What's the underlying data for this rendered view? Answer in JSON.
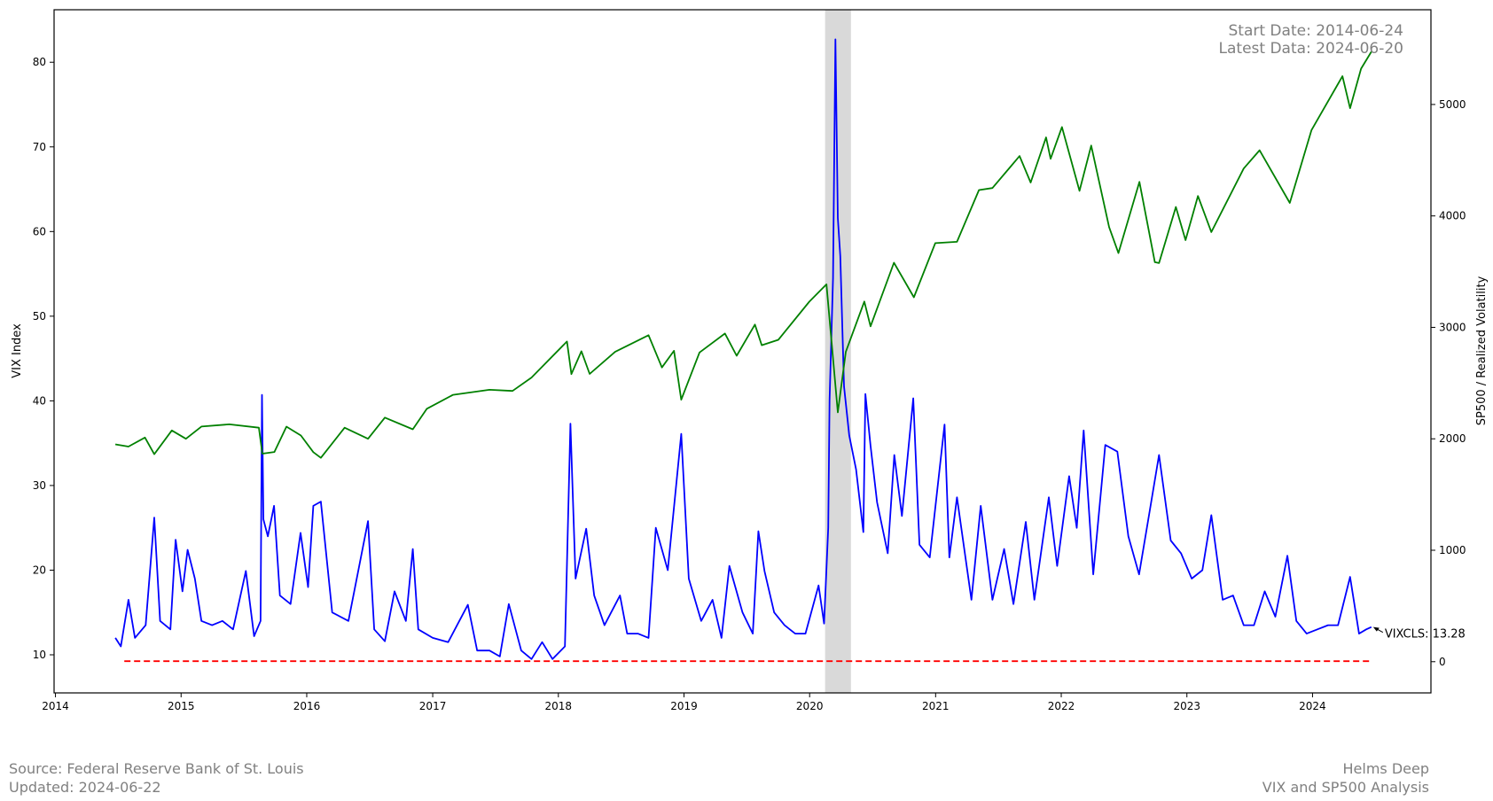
{
  "chart_data": {
    "type": "line",
    "annotation": {
      "start_date": "Start Date: 2014-06-24",
      "latest_data": "Latest Data: 2024-06-20",
      "last_value_label": "VIXCLS: 13.28"
    },
    "left_axis": {
      "label": "VIX Index",
      "ylim": [
        5.5,
        86.2
      ],
      "ticks": [
        10,
        20,
        30,
        40,
        50,
        60,
        70,
        80
      ]
    },
    "right_axis": {
      "label": "SP500 / Realized Volatility",
      "ylim": [
        -280,
        5850
      ],
      "ticks": [
        0,
        1000,
        2000,
        3000,
        4000,
        5000
      ]
    },
    "x_axis": {
      "range": [
        "2013-12-28",
        "2024-12-10"
      ],
      "ticks": [
        "2014",
        "2015",
        "2016",
        "2017",
        "2018",
        "2019",
        "2020",
        "2021",
        "2022",
        "2023",
        "2024"
      ]
    },
    "recession_band": {
      "start": "2020-02-15",
      "end": "2020-04-30",
      "color": "#d9d9d9"
    },
    "series": [
      {
        "axis": "left",
        "color": "#0000ff",
        "points": [
          [
            "2014-06-24",
            12.0
          ],
          [
            "2014-07-10",
            11.0
          ],
          [
            "2014-08-01",
            16.5
          ],
          [
            "2014-08-20",
            12.0
          ],
          [
            "2014-09-20",
            13.5
          ],
          [
            "2014-10-15",
            26.2
          ],
          [
            "2014-11-01",
            14.0
          ],
          [
            "2014-12-01",
            13.0
          ],
          [
            "2014-12-16",
            23.6
          ],
          [
            "2015-01-05",
            17.5
          ],
          [
            "2015-01-20",
            22.4
          ],
          [
            "2015-02-10",
            19.0
          ],
          [
            "2015-03-01",
            14.0
          ],
          [
            "2015-04-01",
            13.5
          ],
          [
            "2015-05-01",
            14.0
          ],
          [
            "2015-06-01",
            13.0
          ],
          [
            "2015-07-08",
            19.9
          ],
          [
            "2015-08-01",
            12.2
          ],
          [
            "2015-08-20",
            14.0
          ],
          [
            "2015-08-24",
            40.7
          ],
          [
            "2015-08-28",
            26.0
          ],
          [
            "2015-09-10",
            24.0
          ],
          [
            "2015-09-28",
            27.6
          ],
          [
            "2015-10-15",
            17.0
          ],
          [
            "2015-11-15",
            16.0
          ],
          [
            "2015-12-14",
            24.4
          ],
          [
            "2016-01-05",
            18.0
          ],
          [
            "2016-01-20",
            27.6
          ],
          [
            "2016-02-11",
            28.1
          ],
          [
            "2016-03-15",
            15.0
          ],
          [
            "2016-05-01",
            14.0
          ],
          [
            "2016-06-27",
            25.8
          ],
          [
            "2016-07-15",
            13.0
          ],
          [
            "2016-08-15",
            11.6
          ],
          [
            "2016-09-12",
            17.5
          ],
          [
            "2016-10-15",
            14.0
          ],
          [
            "2016-11-04",
            22.5
          ],
          [
            "2016-11-20",
            13.0
          ],
          [
            "2017-01-01",
            12.0
          ],
          [
            "2017-02-15",
            11.5
          ],
          [
            "2017-04-13",
            15.9
          ],
          [
            "2017-05-10",
            10.5
          ],
          [
            "2017-06-15",
            10.5
          ],
          [
            "2017-07-15",
            9.8
          ],
          [
            "2017-08-10",
            16.0
          ],
          [
            "2017-09-15",
            10.5
          ],
          [
            "2017-10-15",
            9.5
          ],
          [
            "2017-11-15",
            11.5
          ],
          [
            "2017-12-15",
            9.5
          ],
          [
            "2018-01-20",
            11.0
          ],
          [
            "2018-02-05",
            37.3
          ],
          [
            "2018-02-20",
            19.0
          ],
          [
            "2018-03-23",
            24.9
          ],
          [
            "2018-04-15",
            17.0
          ],
          [
            "2018-05-15",
            13.5
          ],
          [
            "2018-06-29",
            17.0
          ],
          [
            "2018-07-20",
            12.5
          ],
          [
            "2018-08-20",
            12.5
          ],
          [
            "2018-09-20",
            12.0
          ],
          [
            "2018-10-11",
            25.0
          ],
          [
            "2018-11-15",
            20.0
          ],
          [
            "2018-12-24",
            36.1
          ],
          [
            "2019-01-15",
            19.0
          ],
          [
            "2019-02-20",
            14.0
          ],
          [
            "2019-03-25",
            16.5
          ],
          [
            "2019-04-20",
            12.0
          ],
          [
            "2019-05-13",
            20.5
          ],
          [
            "2019-06-20",
            15.0
          ],
          [
            "2019-07-20",
            12.5
          ],
          [
            "2019-08-05",
            24.6
          ],
          [
            "2019-08-23",
            19.9
          ],
          [
            "2019-09-20",
            15.0
          ],
          [
            "2019-10-20",
            13.5
          ],
          [
            "2019-11-20",
            12.5
          ],
          [
            "2019-12-20",
            12.5
          ],
          [
            "2020-01-27",
            18.2
          ],
          [
            "2020-02-12",
            13.7
          ],
          [
            "2020-02-24",
            25.0
          ],
          [
            "2020-02-28",
            40.1
          ],
          [
            "2020-03-09",
            54.5
          ],
          [
            "2020-03-16",
            82.7
          ],
          [
            "2020-03-23",
            61.6
          ],
          [
            "2020-03-30",
            57.1
          ],
          [
            "2020-04-10",
            41.7
          ],
          [
            "2020-04-25",
            35.9
          ],
          [
            "2020-05-15",
            31.9
          ],
          [
            "2020-06-05",
            24.5
          ],
          [
            "2020-06-11",
            40.8
          ],
          [
            "2020-06-26",
            34.7
          ],
          [
            "2020-07-15",
            28.0
          ],
          [
            "2020-08-15",
            22.0
          ],
          [
            "2020-09-03",
            33.6
          ],
          [
            "2020-09-25",
            26.4
          ],
          [
            "2020-10-28",
            40.3
          ],
          [
            "2020-11-15",
            23.0
          ],
          [
            "2020-12-15",
            21.5
          ],
          [
            "2021-01-27",
            37.2
          ],
          [
            "2021-02-10",
            21.5
          ],
          [
            "2021-03-04",
            28.6
          ],
          [
            "2021-04-15",
            16.5
          ],
          [
            "2021-05-12",
            27.6
          ],
          [
            "2021-06-15",
            16.5
          ],
          [
            "2021-07-19",
            22.5
          ],
          [
            "2021-08-15",
            16.0
          ],
          [
            "2021-09-20",
            25.7
          ],
          [
            "2021-10-15",
            16.5
          ],
          [
            "2021-11-26",
            28.6
          ],
          [
            "2021-12-20",
            20.5
          ],
          [
            "2022-01-24",
            31.1
          ],
          [
            "2022-02-15",
            25.0
          ],
          [
            "2022-03-07",
            36.5
          ],
          [
            "2022-04-04",
            19.5
          ],
          [
            "2022-05-09",
            34.8
          ],
          [
            "2022-06-13",
            34.0
          ],
          [
            "2022-07-15",
            24.0
          ],
          [
            "2022-08-15",
            19.5
          ],
          [
            "2022-09-15",
            27.0
          ],
          [
            "2022-10-12",
            33.6
          ],
          [
            "2022-11-15",
            23.5
          ],
          [
            "2022-12-15",
            22.0
          ],
          [
            "2023-01-15",
            19.0
          ],
          [
            "2023-02-15",
            20.0
          ],
          [
            "2023-03-13",
            26.5
          ],
          [
            "2023-04-15",
            16.5
          ],
          [
            "2023-05-15",
            17.0
          ],
          [
            "2023-06-15",
            13.5
          ],
          [
            "2023-07-15",
            13.5
          ],
          [
            "2023-08-15",
            17.5
          ],
          [
            "2023-09-15",
            14.5
          ],
          [
            "2023-10-20",
            21.7
          ],
          [
            "2023-11-15",
            14.0
          ],
          [
            "2023-12-15",
            12.5
          ],
          [
            "2024-01-15",
            13.0
          ],
          [
            "2024-02-15",
            13.5
          ],
          [
            "2024-03-15",
            13.5
          ],
          [
            "2024-04-19",
            19.2
          ],
          [
            "2024-05-15",
            12.5
          ],
          [
            "2024-06-05",
            13.0
          ],
          [
            "2024-06-20",
            13.28
          ]
        ]
      },
      {
        "axis": "right",
        "color": "#008000",
        "points": [
          [
            "2014-06-24",
            1950
          ],
          [
            "2014-08-01",
            1930
          ],
          [
            "2014-09-18",
            2011
          ],
          [
            "2014-10-15",
            1862
          ],
          [
            "2014-12-05",
            2075
          ],
          [
            "2015-01-15",
            2000
          ],
          [
            "2015-03-01",
            2110
          ],
          [
            "2015-05-21",
            2130
          ],
          [
            "2015-08-15",
            2100
          ],
          [
            "2015-08-25",
            1867
          ],
          [
            "2015-09-29",
            1882
          ],
          [
            "2015-11-03",
            2109
          ],
          [
            "2015-12-15",
            2030
          ],
          [
            "2016-01-20",
            1880
          ],
          [
            "2016-02-11",
            1829
          ],
          [
            "2016-04-20",
            2100
          ],
          [
            "2016-06-27",
            2000
          ],
          [
            "2016-08-15",
            2190
          ],
          [
            "2016-11-04",
            2085
          ],
          [
            "2016-12-15",
            2270
          ],
          [
            "2017-03-01",
            2395
          ],
          [
            "2017-06-15",
            2440
          ],
          [
            "2017-08-21",
            2430
          ],
          [
            "2017-10-15",
            2550
          ],
          [
            "2018-01-26",
            2873
          ],
          [
            "2018-02-08",
            2581
          ],
          [
            "2018-03-09",
            2786
          ],
          [
            "2018-04-02",
            2582
          ],
          [
            "2018-06-15",
            2780
          ],
          [
            "2018-09-20",
            2930
          ],
          [
            "2018-10-29",
            2640
          ],
          [
            "2018-12-03",
            2790
          ],
          [
            "2018-12-24",
            2351
          ],
          [
            "2019-02-15",
            2775
          ],
          [
            "2019-04-30",
            2945
          ],
          [
            "2019-06-03",
            2745
          ],
          [
            "2019-07-26",
            3025
          ],
          [
            "2019-08-15",
            2840
          ],
          [
            "2019-10-02",
            2888
          ],
          [
            "2019-12-31",
            3230
          ],
          [
            "2020-02-19",
            3386
          ],
          [
            "2020-03-23",
            2237
          ],
          [
            "2020-04-15",
            2780
          ],
          [
            "2020-06-08",
            3232
          ],
          [
            "2020-06-26",
            3009
          ],
          [
            "2020-09-02",
            3580
          ],
          [
            "2020-10-30",
            3270
          ],
          [
            "2020-12-31",
            3756
          ],
          [
            "2021-03-04",
            3768
          ],
          [
            "2021-05-07",
            4232
          ],
          [
            "2021-06-15",
            4250
          ],
          [
            "2021-09-02",
            4537
          ],
          [
            "2021-10-04",
            4300
          ],
          [
            "2021-11-18",
            4704
          ],
          [
            "2021-12-01",
            4513
          ],
          [
            "2022-01-03",
            4797
          ],
          [
            "2022-02-23",
            4225
          ],
          [
            "2022-03-29",
            4631
          ],
          [
            "2022-05-20",
            3900
          ],
          [
            "2022-06-16",
            3667
          ],
          [
            "2022-08-16",
            4305
          ],
          [
            "2022-09-30",
            3585
          ],
          [
            "2022-10-12",
            3577
          ],
          [
            "2022-11-30",
            4080
          ],
          [
            "2022-12-28",
            3783
          ],
          [
            "2023-02-02",
            4179
          ],
          [
            "2023-03-13",
            3855
          ],
          [
            "2023-06-15",
            4425
          ],
          [
            "2023-07-31",
            4589
          ],
          [
            "2023-10-27",
            4117
          ],
          [
            "2023-12-29",
            4770
          ],
          [
            "2024-03-28",
            5254
          ],
          [
            "2024-04-19",
            4967
          ],
          [
            "2024-05-21",
            5321
          ],
          [
            "2024-06-20",
            5473
          ]
        ]
      },
      {
        "axis": "right",
        "color": "#ff0000",
        "dashed": true,
        "points": [
          [
            "2014-07-20",
            5
          ],
          [
            "2024-06-20",
            5
          ]
        ]
      }
    ]
  },
  "footer": {
    "source": "Source: Federal Reserve Bank of St. Louis",
    "updated": "Updated: 2024-06-22",
    "author": "Helms Deep",
    "subtitle": "VIX and SP500 Analysis"
  }
}
